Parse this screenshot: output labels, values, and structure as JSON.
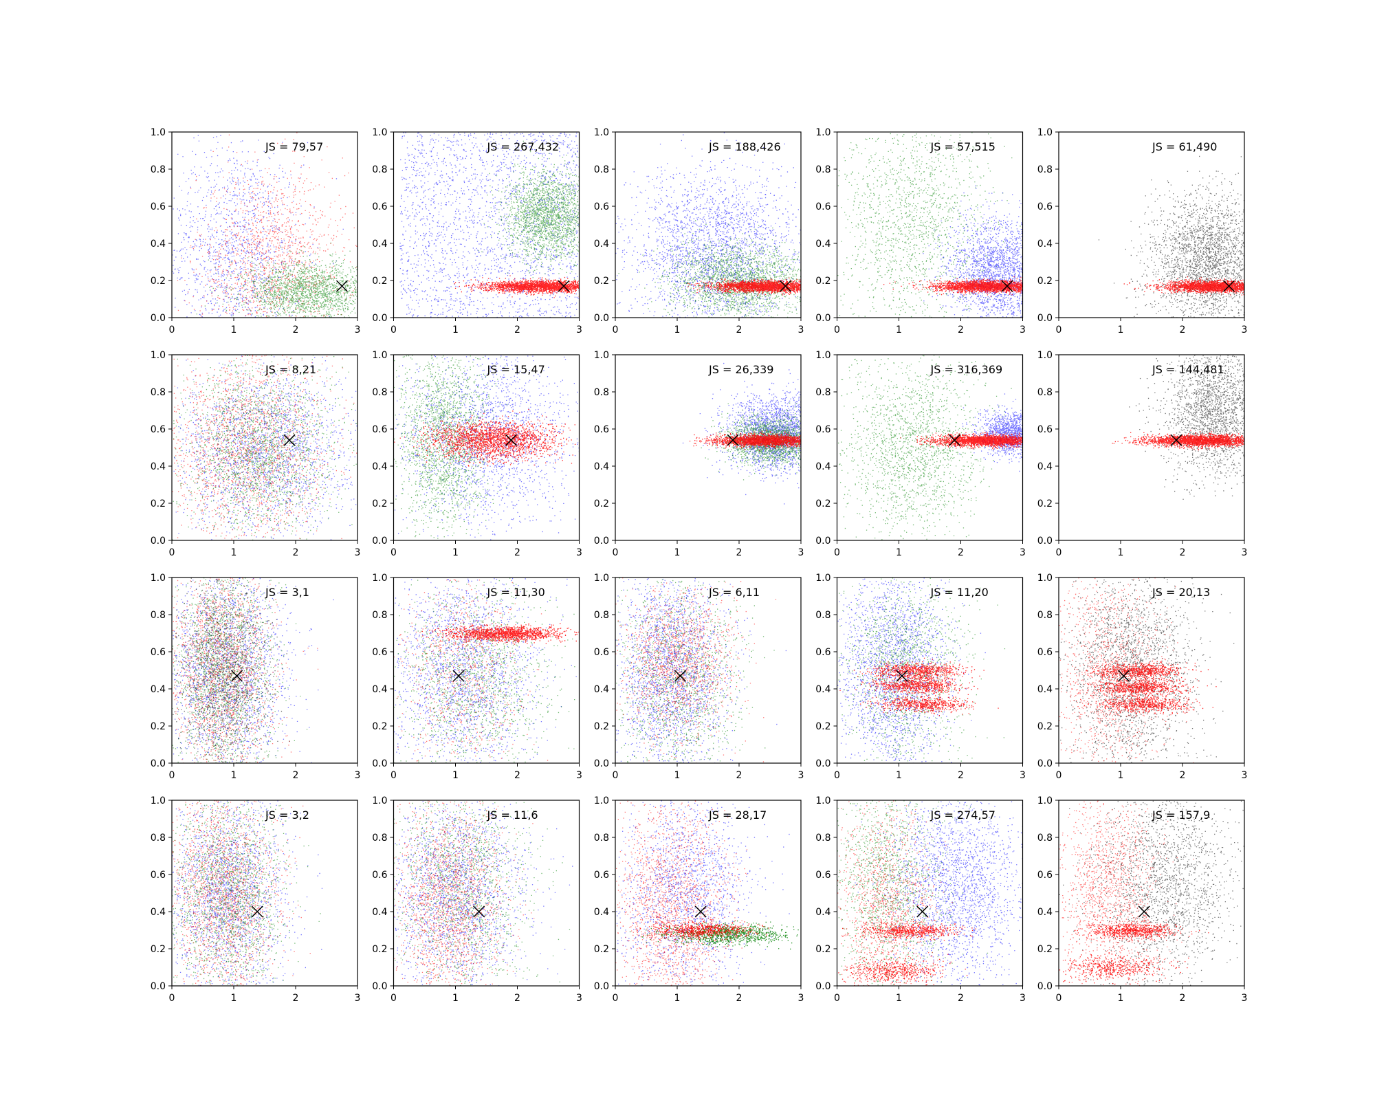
{
  "colors": {
    "blue": "#0000ff",
    "green": "#008000",
    "red": "#ff0000",
    "black": "#000000"
  },
  "chart_data": {
    "type": "scatter",
    "grid": {
      "rows": 4,
      "cols": 5
    },
    "title": "",
    "xlabel": "",
    "ylabel": "",
    "xlim": [
      0,
      3
    ],
    "ylim": [
      0,
      1
    ],
    "x_ticks": [
      "0",
      "1",
      "2",
      "3"
    ],
    "y_ticks": [
      "0.0",
      "0.2",
      "0.4",
      "0.6",
      "0.8",
      "1.0"
    ],
    "grid_lines": false,
    "legend": "none",
    "marker": {
      "symbol": "x",
      "color": "black"
    },
    "panels": [
      {
        "label": "JS = 79,57",
        "marker": [
          2.75,
          0.17
        ],
        "clouds": [
          {
            "color": "blue",
            "n": 1400,
            "shape": "gauss",
            "cx": 1.0,
            "sx": 0.55,
            "cy": 0.35,
            "sy": 0.3
          },
          {
            "color": "red",
            "n": 1500,
            "shape": "gauss",
            "cx": 1.6,
            "sx": 0.6,
            "cy": 0.3,
            "sy": 0.25
          },
          {
            "color": "green",
            "n": 2000,
            "shape": "gauss",
            "cx": 2.2,
            "sx": 0.5,
            "cy": 0.14,
            "sy": 0.08
          }
        ]
      },
      {
        "label": "JS = 267,432",
        "marker": [
          2.75,
          0.17
        ],
        "clouds": [
          {
            "color": "blue",
            "n": 2200,
            "shape": "uniform",
            "x": [
              0.1,
              3.0
            ],
            "y": [
              0.0,
              1.0
            ]
          },
          {
            "color": "green",
            "n": 2200,
            "shape": "gauss",
            "cx": 2.5,
            "sx": 0.35,
            "cy": 0.55,
            "sy": 0.12
          },
          {
            "color": "red",
            "n": 2400,
            "shape": "band",
            "cx": 2.4,
            "sx": 0.45,
            "cy": 0.17,
            "sy": 0.015
          }
        ]
      },
      {
        "label": "JS = 188,426",
        "marker": [
          2.75,
          0.17
        ],
        "clouds": [
          {
            "color": "blue",
            "n": 2600,
            "shape": "gauss",
            "cx": 1.6,
            "sx": 0.7,
            "cy": 0.35,
            "sy": 0.22
          },
          {
            "color": "green",
            "n": 2200,
            "shape": "gauss",
            "cx": 2.0,
            "sx": 0.55,
            "cy": 0.2,
            "sy": 0.1
          },
          {
            "color": "red",
            "n": 2400,
            "shape": "band",
            "cx": 2.4,
            "sx": 0.4,
            "cy": 0.17,
            "sy": 0.015
          }
        ]
      },
      {
        "label": "JS = 57,515",
        "marker": [
          2.75,
          0.17
        ],
        "clouds": [
          {
            "color": "green",
            "n": 1600,
            "shape": "gauss",
            "cx": 1.2,
            "sx": 0.6,
            "cy": 0.5,
            "sy": 0.3
          },
          {
            "color": "blue",
            "n": 2200,
            "shape": "gauss",
            "cx": 2.6,
            "sx": 0.4,
            "cy": 0.25,
            "sy": 0.14
          },
          {
            "color": "red",
            "n": 2400,
            "shape": "band",
            "cx": 2.4,
            "sx": 0.4,
            "cy": 0.17,
            "sy": 0.015
          }
        ]
      },
      {
        "label": "JS = 61,490",
        "marker": [
          2.75,
          0.17
        ],
        "clouds": [
          {
            "color": "black",
            "n": 2600,
            "shape": "gauss",
            "cx": 2.4,
            "sx": 0.45,
            "cy": 0.3,
            "sy": 0.18
          },
          {
            "color": "red",
            "n": 2400,
            "shape": "band",
            "cx": 2.5,
            "sx": 0.4,
            "cy": 0.17,
            "sy": 0.015
          }
        ]
      },
      {
        "label": "JS = 8,21",
        "marker": [
          1.9,
          0.54
        ],
        "clouds": [
          {
            "color": "blue",
            "n": 2000,
            "shape": "gauss",
            "cx": 1.5,
            "sx": 0.7,
            "cy": 0.5,
            "sy": 0.22
          },
          {
            "color": "red",
            "n": 2000,
            "shape": "gauss",
            "cx": 1.2,
            "sx": 0.65,
            "cy": 0.5,
            "sy": 0.25
          },
          {
            "color": "green",
            "n": 2000,
            "shape": "gauss",
            "cx": 1.4,
            "sx": 0.6,
            "cy": 0.48,
            "sy": 0.22
          }
        ]
      },
      {
        "label": "JS = 15,47",
        "marker": [
          1.9,
          0.54
        ],
        "clouds": [
          {
            "color": "blue",
            "n": 2000,
            "shape": "gauss",
            "cx": 1.5,
            "sx": 0.7,
            "cy": 0.55,
            "sy": 0.25
          },
          {
            "color": "green",
            "n": 2000,
            "shape": "gauss",
            "cx": 0.8,
            "sx": 0.35,
            "cy": 0.55,
            "sy": 0.25
          },
          {
            "color": "red",
            "n": 2000,
            "shape": "band",
            "cx": 1.6,
            "sx": 0.5,
            "cy": 0.54,
            "sy": 0.05
          }
        ]
      },
      {
        "label": "JS = 26,339",
        "marker": [
          1.9,
          0.54
        ],
        "clouds": [
          {
            "color": "blue",
            "n": 2200,
            "shape": "gauss",
            "cx": 2.6,
            "sx": 0.4,
            "cy": 0.58,
            "sy": 0.1
          },
          {
            "color": "green",
            "n": 2000,
            "shape": "gauss",
            "cx": 2.5,
            "sx": 0.35,
            "cy": 0.54,
            "sy": 0.06
          },
          {
            "color": "red",
            "n": 2400,
            "shape": "band",
            "cx": 2.4,
            "sx": 0.4,
            "cy": 0.54,
            "sy": 0.015
          }
        ]
      },
      {
        "label": "JS = 316,369",
        "marker": [
          1.9,
          0.54
        ],
        "clouds": [
          {
            "color": "green",
            "n": 1800,
            "shape": "gauss",
            "cx": 1.2,
            "sx": 0.55,
            "cy": 0.5,
            "sy": 0.25
          },
          {
            "color": "blue",
            "n": 1400,
            "shape": "gauss",
            "cx": 2.8,
            "sx": 0.25,
            "cy": 0.58,
            "sy": 0.06
          },
          {
            "color": "red",
            "n": 2400,
            "shape": "band",
            "cx": 2.4,
            "sx": 0.4,
            "cy": 0.54,
            "sy": 0.015
          }
        ]
      },
      {
        "label": "JS = 144,481",
        "marker": [
          1.9,
          0.54
        ],
        "clouds": [
          {
            "color": "black",
            "n": 2200,
            "shape": "gauss",
            "cx": 2.5,
            "sx": 0.4,
            "cy": 0.7,
            "sy": 0.18
          },
          {
            "color": "red",
            "n": 2400,
            "shape": "band",
            "cx": 2.3,
            "sx": 0.45,
            "cy": 0.54,
            "sy": 0.015
          }
        ]
      },
      {
        "label": "JS = 3,1",
        "marker": [
          1.05,
          0.47
        ],
        "clouds": [
          {
            "color": "blue",
            "n": 2000,
            "shape": "gauss",
            "cx": 0.9,
            "sx": 0.5,
            "cy": 0.5,
            "sy": 0.28
          },
          {
            "color": "red",
            "n": 2000,
            "shape": "gauss",
            "cx": 0.8,
            "sx": 0.4,
            "cy": 0.5,
            "sy": 0.28
          },
          {
            "color": "green",
            "n": 2000,
            "shape": "gauss",
            "cx": 0.85,
            "sx": 0.4,
            "cy": 0.5,
            "sy": 0.28
          },
          {
            "color": "black",
            "n": 1000,
            "shape": "gauss",
            "cx": 0.8,
            "sx": 0.35,
            "cy": 0.5,
            "sy": 0.28
          }
        ]
      },
      {
        "label": "JS = 11,30",
        "marker": [
          1.05,
          0.47
        ],
        "clouds": [
          {
            "color": "blue",
            "n": 2000,
            "shape": "gauss",
            "cx": 1.1,
            "sx": 0.6,
            "cy": 0.5,
            "sy": 0.28
          },
          {
            "color": "green",
            "n": 1500,
            "shape": "gauss",
            "cx": 1.3,
            "sx": 0.6,
            "cy": 0.45,
            "sy": 0.25
          },
          {
            "color": "red",
            "n": 1400,
            "shape": "band",
            "cx": 1.8,
            "sx": 0.45,
            "cy": 0.7,
            "sy": 0.02
          },
          {
            "color": "red",
            "n": 800,
            "shape": "gauss",
            "cx": 1.1,
            "sx": 0.5,
            "cy": 0.5,
            "sy": 0.25
          }
        ]
      },
      {
        "label": "JS = 6,11",
        "marker": [
          1.05,
          0.47
        ],
        "clouds": [
          {
            "color": "blue",
            "n": 2200,
            "shape": "gauss",
            "cx": 0.9,
            "sx": 0.45,
            "cy": 0.5,
            "sy": 0.28
          },
          {
            "color": "green",
            "n": 1500,
            "shape": "gauss",
            "cx": 1.0,
            "sx": 0.5,
            "cy": 0.45,
            "sy": 0.28
          },
          {
            "color": "red",
            "n": 1500,
            "shape": "gauss",
            "cx": 1.0,
            "sx": 0.45,
            "cy": 0.55,
            "sy": 0.2
          }
        ]
      },
      {
        "label": "JS = 11,20",
        "marker": [
          1.05,
          0.47
        ],
        "clouds": [
          {
            "color": "blue",
            "n": 2200,
            "shape": "gauss",
            "cx": 0.9,
            "sx": 0.45,
            "cy": 0.5,
            "sy": 0.28
          },
          {
            "color": "green",
            "n": 1400,
            "shape": "gauss",
            "cx": 1.1,
            "sx": 0.5,
            "cy": 0.5,
            "sy": 0.25
          },
          {
            "color": "red",
            "n": 700,
            "shape": "band",
            "cx": 1.3,
            "sx": 0.35,
            "cy": 0.5,
            "sy": 0.02
          },
          {
            "color": "red",
            "n": 700,
            "shape": "band",
            "cx": 1.3,
            "sx": 0.35,
            "cy": 0.42,
            "sy": 0.02
          },
          {
            "color": "red",
            "n": 600,
            "shape": "band",
            "cx": 1.4,
            "sx": 0.35,
            "cy": 0.32,
            "sy": 0.02
          }
        ]
      },
      {
        "label": "JS = 20,13",
        "marker": [
          1.05,
          0.47
        ],
        "clouds": [
          {
            "color": "black",
            "n": 2200,
            "shape": "gauss",
            "cx": 1.2,
            "sx": 0.5,
            "cy": 0.5,
            "sy": 0.28
          },
          {
            "color": "red",
            "n": 1200,
            "shape": "gauss",
            "cx": 0.8,
            "sx": 0.45,
            "cy": 0.5,
            "sy": 0.28
          },
          {
            "color": "red",
            "n": 700,
            "shape": "band",
            "cx": 1.3,
            "sx": 0.35,
            "cy": 0.5,
            "sy": 0.02
          },
          {
            "color": "red",
            "n": 700,
            "shape": "band",
            "cx": 1.3,
            "sx": 0.35,
            "cy": 0.41,
            "sy": 0.02
          },
          {
            "color": "red",
            "n": 600,
            "shape": "band",
            "cx": 1.4,
            "sx": 0.35,
            "cy": 0.32,
            "sy": 0.02
          }
        ]
      },
      {
        "label": "JS = 3,2",
        "marker": [
          1.38,
          0.4
        ],
        "clouds": [
          {
            "color": "blue",
            "n": 2000,
            "shape": "gauss",
            "cx": 0.9,
            "sx": 0.5,
            "cy": 0.5,
            "sy": 0.28
          },
          {
            "color": "red",
            "n": 2000,
            "shape": "gauss",
            "cx": 0.85,
            "sx": 0.45,
            "cy": 0.5,
            "sy": 0.28
          },
          {
            "color": "green",
            "n": 1800,
            "shape": "gauss",
            "cx": 0.9,
            "sx": 0.45,
            "cy": 0.5,
            "sy": 0.28
          }
        ]
      },
      {
        "label": "JS = 11,6",
        "marker": [
          1.38,
          0.4
        ],
        "clouds": [
          {
            "color": "blue",
            "n": 2000,
            "shape": "gauss",
            "cx": 1.0,
            "sx": 0.55,
            "cy": 0.5,
            "sy": 0.28
          },
          {
            "color": "green",
            "n": 1600,
            "shape": "gauss",
            "cx": 1.1,
            "sx": 0.55,
            "cy": 0.55,
            "sy": 0.28
          },
          {
            "color": "red",
            "n": 1800,
            "shape": "gauss",
            "cx": 0.9,
            "sx": 0.45,
            "cy": 0.45,
            "sy": 0.28
          }
        ]
      },
      {
        "label": "JS = 28,17",
        "marker": [
          1.38,
          0.4
        ],
        "clouds": [
          {
            "color": "blue",
            "n": 1800,
            "shape": "gauss",
            "cx": 1.1,
            "sx": 0.55,
            "cy": 0.5,
            "sy": 0.28
          },
          {
            "color": "red",
            "n": 1800,
            "shape": "gauss",
            "cx": 0.9,
            "sx": 0.45,
            "cy": 0.45,
            "sy": 0.28
          },
          {
            "color": "green",
            "n": 1000,
            "shape": "band",
            "cx": 1.8,
            "sx": 0.5,
            "cy": 0.28,
            "sy": 0.025
          },
          {
            "color": "red",
            "n": 700,
            "shape": "band",
            "cx": 1.4,
            "sx": 0.4,
            "cy": 0.3,
            "sy": 0.02
          }
        ]
      },
      {
        "label": "JS = 274,57",
        "marker": [
          1.38,
          0.4
        ],
        "clouds": [
          {
            "color": "blue",
            "n": 2200,
            "shape": "gauss",
            "cx": 1.9,
            "sx": 0.55,
            "cy": 0.55,
            "sy": 0.26
          },
          {
            "color": "green",
            "n": 1500,
            "shape": "gauss",
            "cx": 0.8,
            "sx": 0.45,
            "cy": 0.55,
            "sy": 0.28
          },
          {
            "color": "red",
            "n": 1200,
            "shape": "gauss",
            "cx": 0.8,
            "sx": 0.4,
            "cy": 0.45,
            "sy": 0.25
          },
          {
            "color": "red",
            "n": 600,
            "shape": "band",
            "cx": 1.2,
            "sx": 0.4,
            "cy": 0.3,
            "sy": 0.02
          },
          {
            "color": "red",
            "n": 500,
            "shape": "band",
            "cx": 0.9,
            "sx": 0.4,
            "cy": 0.08,
            "sy": 0.03
          }
        ]
      },
      {
        "label": "JS = 157,9",
        "marker": [
          1.38,
          0.4
        ],
        "clouds": [
          {
            "color": "black",
            "n": 2000,
            "shape": "gauss",
            "cx": 1.7,
            "sx": 0.55,
            "cy": 0.55,
            "sy": 0.26
          },
          {
            "color": "red",
            "n": 1500,
            "shape": "gauss",
            "cx": 0.8,
            "sx": 0.4,
            "cy": 0.5,
            "sy": 0.28
          },
          {
            "color": "red",
            "n": 700,
            "shape": "band",
            "cx": 1.2,
            "sx": 0.35,
            "cy": 0.3,
            "sy": 0.02
          },
          {
            "color": "red",
            "n": 500,
            "shape": "band",
            "cx": 0.9,
            "sx": 0.4,
            "cy": 0.1,
            "sy": 0.03
          }
        ]
      }
    ]
  }
}
